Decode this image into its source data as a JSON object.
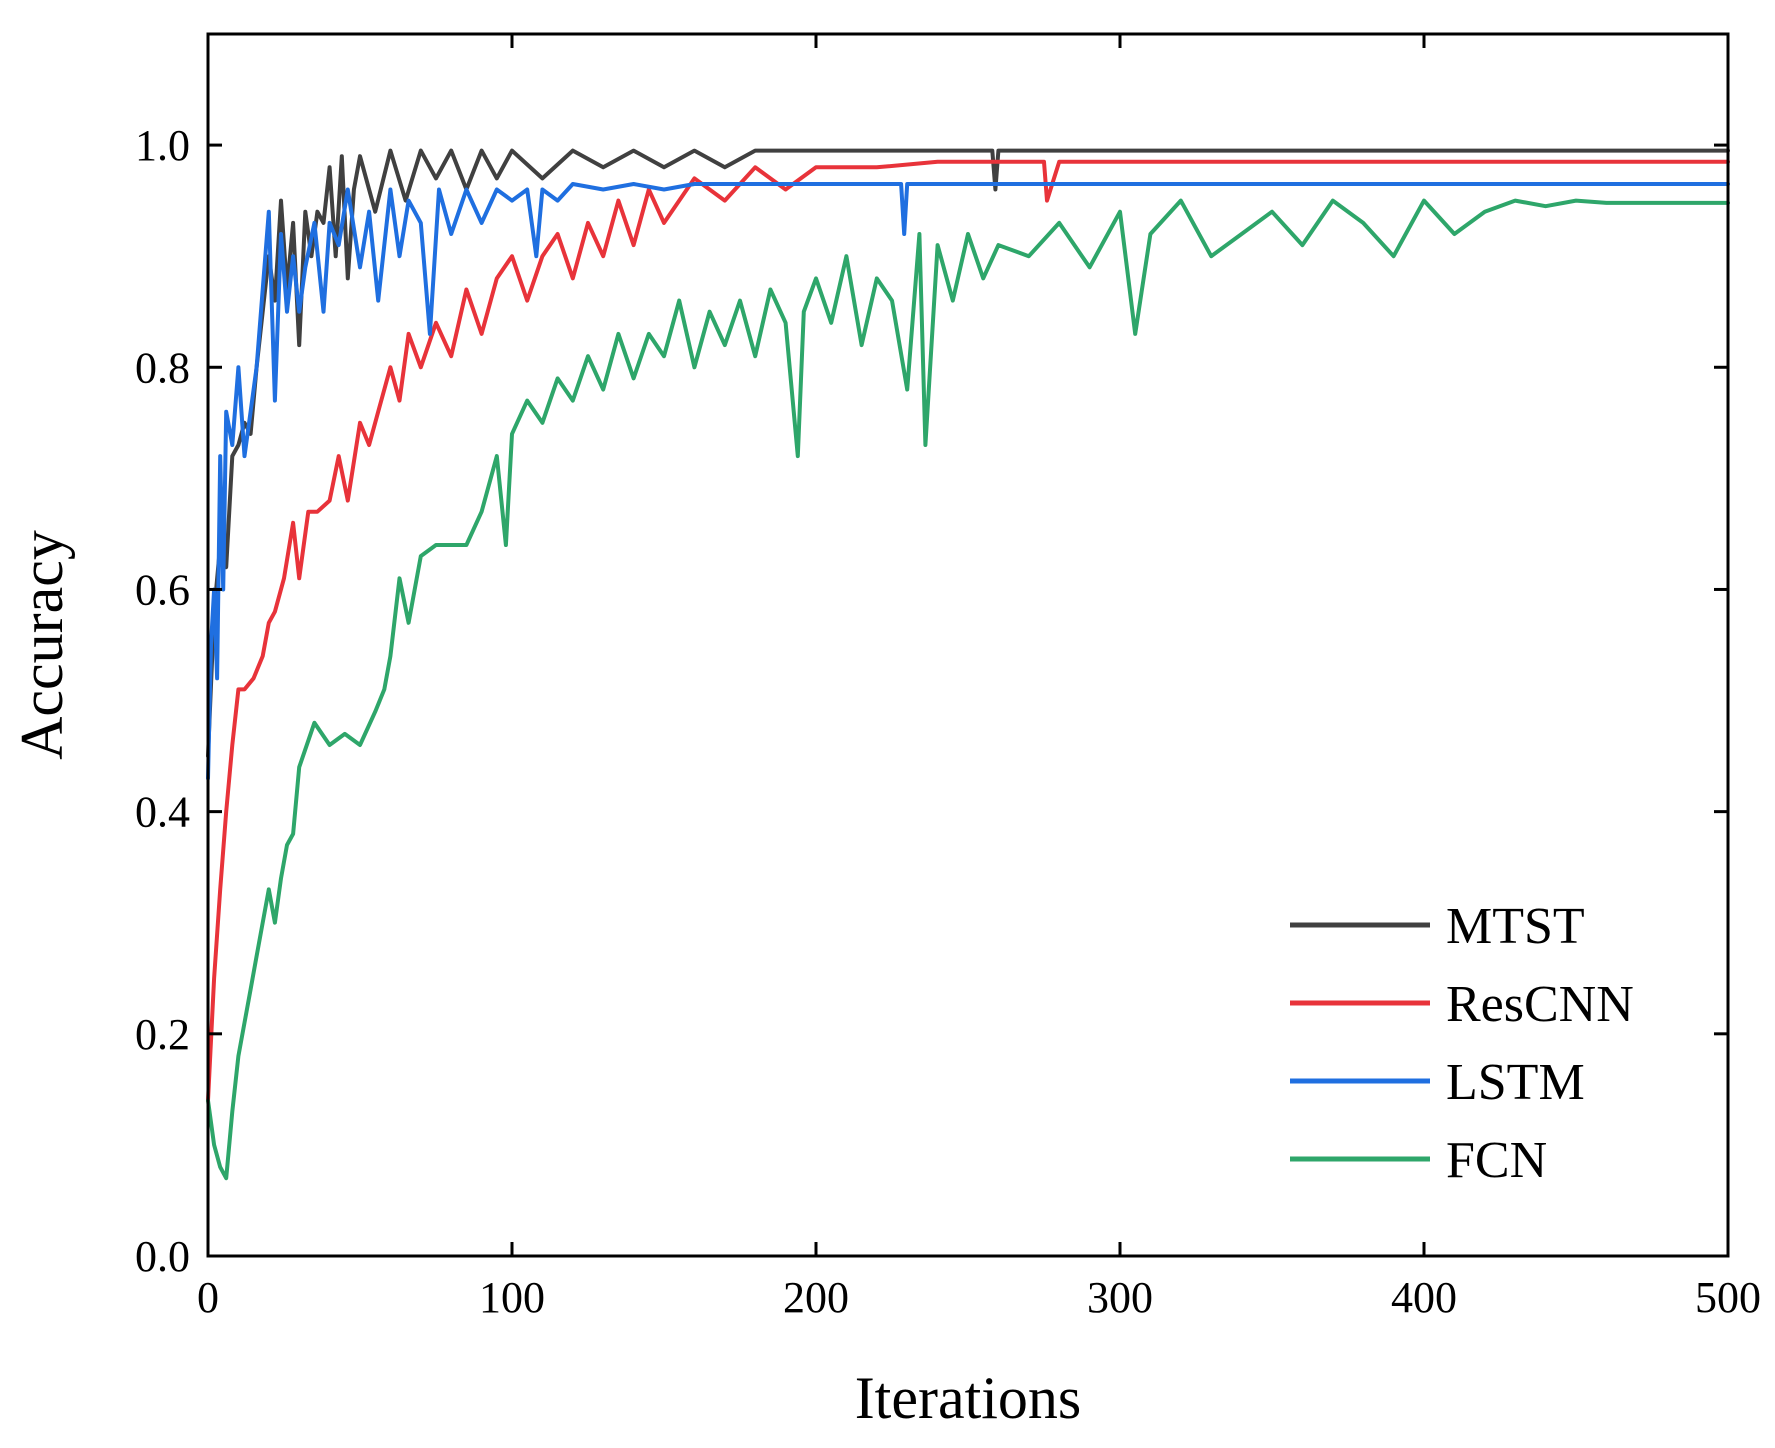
{
  "chart_data": {
    "type": "line",
    "title": "",
    "xlabel": "Iterations",
    "ylabel": "Accuracy",
    "xlim": [
      0,
      500
    ],
    "ylim": [
      0,
      1.1
    ],
    "xticks": [
      0,
      100,
      200,
      300,
      400,
      500
    ],
    "xtick_labels": [
      "0",
      "100",
      "200",
      "300",
      "400",
      "500"
    ],
    "yticks": [
      0,
      0.2,
      0.4,
      0.6,
      0.8,
      1.0
    ],
    "ytick_labels": [
      "0.0",
      "0.2",
      "0.4",
      "0.6",
      "0.8",
      "1.0"
    ],
    "grid": false,
    "legend_position": "bottom-right",
    "series": [
      {
        "name": "MTST",
        "color": "#404040",
        "x": [
          0,
          2,
          4,
          6,
          8,
          10,
          12,
          14,
          16,
          18,
          20,
          22,
          24,
          26,
          28,
          30,
          32,
          34,
          36,
          38,
          40,
          42,
          44,
          46,
          48,
          50,
          55,
          60,
          65,
          70,
          75,
          80,
          85,
          90,
          95,
          100,
          110,
          120,
          130,
          140,
          150,
          160,
          170,
          180,
          200,
          220,
          240,
          258,
          259,
          260,
          280,
          300,
          350,
          400,
          450,
          500
        ],
        "values": [
          0.45,
          0.58,
          0.64,
          0.62,
          0.72,
          0.73,
          0.75,
          0.74,
          0.8,
          0.85,
          0.9,
          0.86,
          0.95,
          0.87,
          0.93,
          0.82,
          0.94,
          0.9,
          0.94,
          0.93,
          0.98,
          0.9,
          0.99,
          0.88,
          0.96,
          0.99,
          0.94,
          0.995,
          0.95,
          0.995,
          0.97,
          0.995,
          0.96,
          0.995,
          0.97,
          0.995,
          0.97,
          0.995,
          0.98,
          0.995,
          0.98,
          0.995,
          0.98,
          0.995,
          0.995,
          0.995,
          0.995,
          0.995,
          0.96,
          0.995,
          0.995,
          0.995,
          0.995,
          0.995,
          0.995,
          0.995
        ]
      },
      {
        "name": "ResCNN",
        "color": "#e8333a",
        "x": [
          0,
          2,
          4,
          6,
          8,
          10,
          12,
          15,
          18,
          20,
          22,
          25,
          28,
          30,
          33,
          36,
          40,
          43,
          46,
          50,
          53,
          56,
          60,
          63,
          66,
          70,
          75,
          80,
          85,
          90,
          95,
          100,
          105,
          110,
          115,
          120,
          125,
          130,
          135,
          140,
          145,
          150,
          160,
          170,
          180,
          190,
          200,
          220,
          240,
          260,
          275,
          276,
          280,
          300,
          350,
          400,
          450,
          500
        ],
        "values": [
          0.14,
          0.25,
          0.33,
          0.4,
          0.46,
          0.51,
          0.51,
          0.52,
          0.54,
          0.57,
          0.58,
          0.61,
          0.66,
          0.61,
          0.67,
          0.67,
          0.68,
          0.72,
          0.68,
          0.75,
          0.73,
          0.76,
          0.8,
          0.77,
          0.83,
          0.8,
          0.84,
          0.81,
          0.87,
          0.83,
          0.88,
          0.9,
          0.86,
          0.9,
          0.92,
          0.88,
          0.93,
          0.9,
          0.95,
          0.91,
          0.96,
          0.93,
          0.97,
          0.95,
          0.98,
          0.96,
          0.98,
          0.98,
          0.985,
          0.985,
          0.985,
          0.95,
          0.985,
          0.985,
          0.985,
          0.985,
          0.985,
          0.985
        ]
      },
      {
        "name": "LSTM",
        "color": "#1f6fe0",
        "x": [
          0,
          1,
          2,
          3,
          4,
          5,
          6,
          8,
          10,
          12,
          14,
          16,
          18,
          20,
          22,
          24,
          26,
          28,
          30,
          32,
          35,
          38,
          40,
          43,
          46,
          50,
          53,
          56,
          60,
          63,
          66,
          70,
          73,
          76,
          80,
          85,
          90,
          95,
          100,
          105,
          108,
          110,
          115,
          120,
          130,
          140,
          150,
          160,
          170,
          180,
          200,
          220,
          228,
          229,
          230,
          250,
          300,
          350,
          400,
          450,
          500
        ],
        "values": [
          0.43,
          0.55,
          0.6,
          0.52,
          0.72,
          0.6,
          0.76,
          0.73,
          0.8,
          0.72,
          0.76,
          0.8,
          0.87,
          0.94,
          0.77,
          0.92,
          0.85,
          0.9,
          0.85,
          0.89,
          0.93,
          0.85,
          0.93,
          0.91,
          0.96,
          0.89,
          0.94,
          0.86,
          0.96,
          0.9,
          0.95,
          0.93,
          0.83,
          0.96,
          0.92,
          0.96,
          0.93,
          0.96,
          0.95,
          0.96,
          0.9,
          0.96,
          0.95,
          0.965,
          0.96,
          0.965,
          0.96,
          0.965,
          0.965,
          0.965,
          0.965,
          0.965,
          0.965,
          0.92,
          0.965,
          0.965,
          0.965,
          0.965,
          0.965,
          0.965,
          0.965
        ]
      },
      {
        "name": "FCN",
        "color": "#2ea66a",
        "x": [
          0,
          2,
          4,
          6,
          8,
          10,
          12,
          14,
          16,
          18,
          20,
          22,
          24,
          26,
          28,
          30,
          35,
          40,
          45,
          50,
          55,
          58,
          60,
          63,
          66,
          70,
          75,
          80,
          85,
          90,
          95,
          98,
          100,
          105,
          110,
          115,
          120,
          125,
          130,
          135,
          140,
          145,
          150,
          155,
          160,
          165,
          170,
          175,
          180,
          185,
          190,
          194,
          196,
          200,
          205,
          210,
          215,
          220,
          225,
          230,
          234,
          236,
          240,
          245,
          250,
          255,
          260,
          270,
          280,
          290,
          300,
          305,
          310,
          320,
          330,
          340,
          350,
          360,
          370,
          380,
          390,
          400,
          410,
          420,
          430,
          440,
          450,
          460,
          500
        ],
        "values": [
          0.14,
          0.1,
          0.08,
          0.07,
          0.13,
          0.18,
          0.21,
          0.24,
          0.27,
          0.3,
          0.33,
          0.3,
          0.34,
          0.37,
          0.38,
          0.44,
          0.48,
          0.46,
          0.47,
          0.46,
          0.49,
          0.51,
          0.54,
          0.61,
          0.57,
          0.63,
          0.64,
          0.64,
          0.64,
          0.67,
          0.72,
          0.64,
          0.74,
          0.77,
          0.75,
          0.79,
          0.77,
          0.81,
          0.78,
          0.83,
          0.79,
          0.83,
          0.81,
          0.86,
          0.8,
          0.85,
          0.82,
          0.86,
          0.81,
          0.87,
          0.84,
          0.72,
          0.85,
          0.88,
          0.84,
          0.9,
          0.82,
          0.88,
          0.86,
          0.78,
          0.92,
          0.73,
          0.91,
          0.86,
          0.92,
          0.88,
          0.91,
          0.9,
          0.93,
          0.89,
          0.94,
          0.83,
          0.92,
          0.95,
          0.9,
          0.92,
          0.94,
          0.91,
          0.95,
          0.93,
          0.9,
          0.95,
          0.92,
          0.94,
          0.95,
          0.945,
          0.95,
          0.948,
          0.948
        ]
      }
    ]
  }
}
